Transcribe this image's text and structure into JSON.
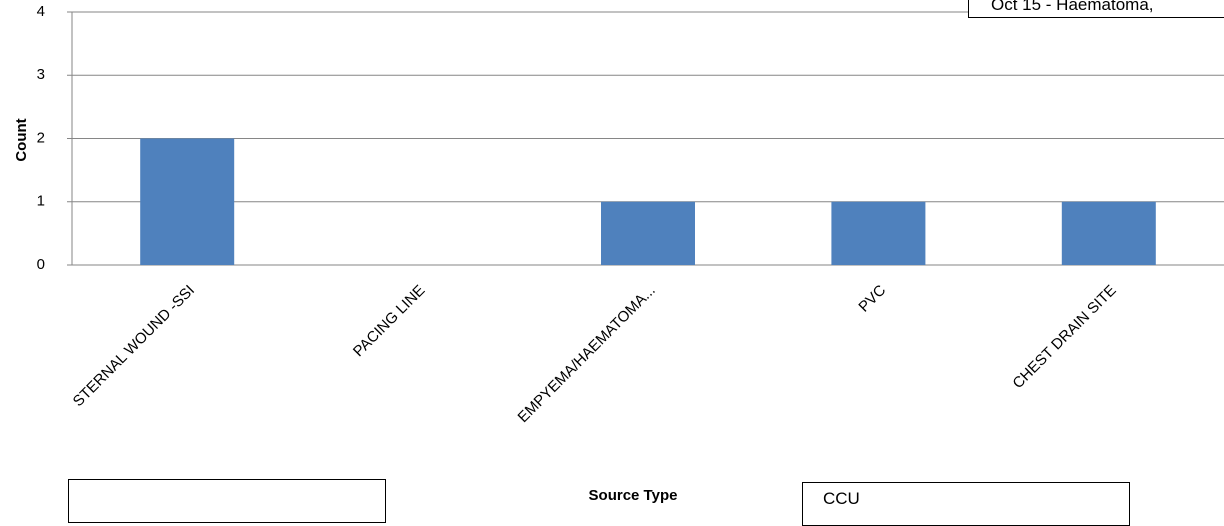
{
  "chart_data": {
    "type": "bar",
    "categories": [
      "STERNAL WOUND -SSI",
      "PACING LINE",
      "EMPYEMA/HAEMATOMA...",
      "PVC",
      "CHEST DRAIN SITE"
    ],
    "values": [
      2,
      0,
      1,
      1,
      1
    ],
    "xlabel": "Source Type",
    "ylabel": "Count",
    "ylim": [
      0,
      4
    ],
    "yticks": [
      0,
      1,
      2,
      3,
      4
    ],
    "grid": true,
    "bar_color": "#4F81BD"
  },
  "annotations": {
    "top_right_box": "Oct 15 - Haematoma,",
    "bottom_left_box": "",
    "bottom_right_box": "CCU"
  }
}
